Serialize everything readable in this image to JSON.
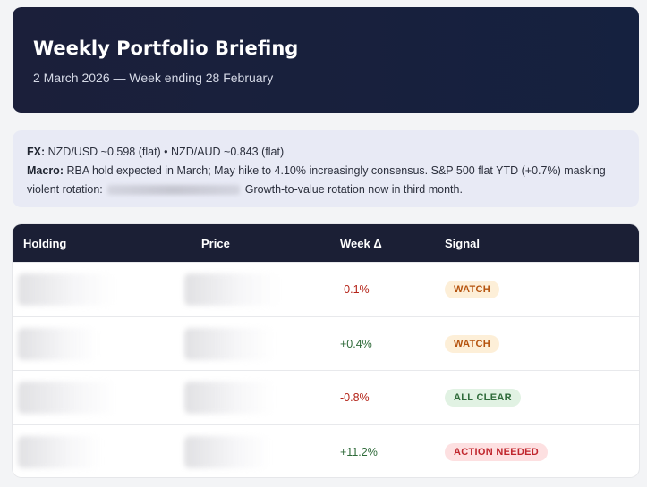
{
  "header": {
    "title": "Weekly Portfolio Briefing",
    "subtitle": "2 March 2026 — Week ending 28 February"
  },
  "notes": {
    "fx_label": "FX:",
    "fx_text": "NZD/USD ~0.598 (flat) • NZD/AUD ~0.843 (flat)",
    "macro_label": "Macro:",
    "macro_text_1": "RBA hold expected in March; May hike to 4.10% increasingly consensus. S&P 500 flat YTD (+0.7%) masking violent rotation:",
    "macro_text_2": "Growth-to-value rotation now in third month."
  },
  "table": {
    "headers": {
      "holding": "Holding",
      "price": "Price",
      "week_delta": "Week Δ",
      "signal": "Signal"
    },
    "rows": [
      {
        "week_delta": "-0.1%",
        "signal": "WATCH",
        "delta_sign": "neg",
        "signal_kind": "watch"
      },
      {
        "week_delta": "+0.4%",
        "signal": "WATCH",
        "delta_sign": "pos",
        "signal_kind": "watch"
      },
      {
        "week_delta": "-0.8%",
        "signal": "ALL CLEAR",
        "delta_sign": "neg",
        "signal_kind": "clear"
      },
      {
        "week_delta": "+11.2%",
        "signal": "ACTION NEEDED",
        "delta_sign": "pos",
        "signal_kind": "action"
      }
    ]
  },
  "colors": {
    "header_bg": "#1b1f3a",
    "notes_bg": "#e8eaf5",
    "negative": "#b42318",
    "positive": "#2f6b3a",
    "watch": "#b5530e",
    "clear": "#2f6b3a",
    "action": "#c0262d"
  }
}
